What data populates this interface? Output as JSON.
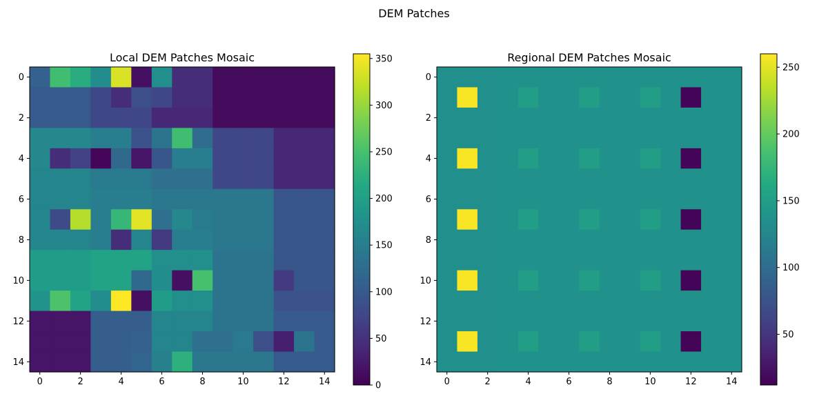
{
  "figure_title": "DEM Patches",
  "chart_data": [
    {
      "type": "heatmap",
      "title": "Local DEM Patches Mosaic",
      "colormap": "viridis",
      "vmin": 0,
      "vmax": 355,
      "xticks": [
        0,
        2,
        4,
        6,
        8,
        10,
        12,
        14
      ],
      "yticks": [
        0,
        2,
        4,
        6,
        8,
        10,
        12,
        14
      ],
      "colorbar_ticks": [
        0,
        50,
        100,
        150,
        200,
        250,
        300,
        350
      ],
      "grid": false,
      "values": [
        [
          110,
          245,
          220,
          170,
          335,
          15,
          175,
          45,
          45,
          10,
          10,
          10,
          10,
          10,
          10
        ],
        [
          100,
          100,
          100,
          75,
          45,
          85,
          75,
          45,
          45,
          10,
          10,
          10,
          10,
          10,
          10
        ],
        [
          100,
          100,
          100,
          75,
          75,
          75,
          40,
          40,
          40,
          10,
          10,
          10,
          10,
          10,
          10
        ],
        [
          165,
          165,
          165,
          150,
          150,
          90,
          135,
          245,
          125,
          75,
          75,
          75,
          40,
          40,
          40
        ],
        [
          165,
          45,
          70,
          5,
          120,
          20,
          95,
          150,
          150,
          75,
          75,
          75,
          40,
          40,
          40
        ],
        [
          160,
          160,
          160,
          145,
          145,
          145,
          130,
          130,
          130,
          75,
          75,
          75,
          40,
          40,
          40
        ],
        [
          160,
          160,
          160,
          150,
          150,
          150,
          140,
          140,
          140,
          140,
          140,
          140,
          95,
          95,
          95
        ],
        [
          160,
          80,
          315,
          150,
          235,
          340,
          130,
          165,
          145,
          140,
          140,
          140,
          95,
          95,
          95
        ],
        [
          160,
          160,
          160,
          150,
          45,
          160,
          60,
          150,
          150,
          140,
          140,
          140,
          95,
          95,
          95
        ],
        [
          195,
          195,
          195,
          205,
          205,
          205,
          175,
          175,
          175,
          135,
          135,
          135,
          95,
          95,
          95
        ],
        [
          195,
          195,
          195,
          205,
          205,
          120,
          170,
          15,
          250,
          135,
          135,
          135,
          60,
          95,
          95
        ],
        [
          180,
          255,
          205,
          170,
          355,
          15,
          195,
          175,
          175,
          135,
          135,
          135,
          90,
          90,
          90
        ],
        [
          20,
          20,
          20,
          105,
          105,
          105,
          160,
          160,
          160,
          135,
          135,
          135,
          100,
          100,
          100
        ],
        [
          20,
          20,
          20,
          105,
          105,
          110,
          160,
          160,
          130,
          130,
          145,
          85,
          30,
          135,
          100
        ],
        [
          20,
          20,
          20,
          105,
          105,
          115,
          155,
          225,
          140,
          140,
          140,
          140,
          100,
          100,
          100
        ]
      ]
    },
    {
      "type": "heatmap",
      "title": "Regional DEM Patches Mosaic",
      "colormap": "viridis",
      "vmin": 12,
      "vmax": 260,
      "xticks": [
        0,
        2,
        4,
        6,
        8,
        10,
        12,
        14
      ],
      "yticks": [
        0,
        2,
        4,
        6,
        8,
        10,
        12,
        14
      ],
      "colorbar_ticks": [
        50,
        100,
        150,
        200,
        250
      ],
      "grid": false,
      "values": [
        [
          135,
          135,
          135,
          136,
          136,
          136,
          136,
          136,
          136,
          136,
          136,
          136,
          136,
          136,
          136
        ],
        [
          135,
          258,
          135,
          136,
          150,
          136,
          136,
          150,
          136,
          136,
          150,
          136,
          14,
          136,
          136
        ],
        [
          135,
          135,
          135,
          136,
          136,
          136,
          136,
          136,
          136,
          136,
          136,
          136,
          136,
          136,
          136
        ],
        [
          135,
          135,
          135,
          136,
          136,
          136,
          136,
          136,
          136,
          136,
          136,
          136,
          136,
          136,
          136
        ],
        [
          135,
          258,
          135,
          136,
          150,
          136,
          136,
          150,
          136,
          136,
          150,
          136,
          14,
          136,
          136
        ],
        [
          135,
          135,
          135,
          136,
          136,
          136,
          136,
          136,
          136,
          136,
          136,
          136,
          136,
          136,
          136
        ],
        [
          135,
          135,
          135,
          136,
          136,
          136,
          136,
          136,
          136,
          136,
          136,
          136,
          136,
          136,
          136
        ],
        [
          135,
          258,
          135,
          136,
          150,
          136,
          136,
          150,
          136,
          136,
          150,
          136,
          14,
          136,
          136
        ],
        [
          135,
          135,
          135,
          136,
          136,
          136,
          136,
          136,
          136,
          136,
          136,
          136,
          136,
          136,
          136
        ],
        [
          135,
          135,
          135,
          136,
          136,
          136,
          136,
          136,
          136,
          136,
          136,
          136,
          136,
          136,
          136
        ],
        [
          135,
          258,
          135,
          136,
          150,
          136,
          136,
          150,
          136,
          136,
          150,
          136,
          14,
          136,
          136
        ],
        [
          135,
          135,
          135,
          136,
          136,
          136,
          136,
          136,
          136,
          136,
          136,
          136,
          136,
          136,
          136
        ],
        [
          135,
          135,
          135,
          136,
          136,
          136,
          136,
          136,
          136,
          136,
          136,
          136,
          136,
          136,
          136
        ],
        [
          135,
          258,
          135,
          136,
          150,
          136,
          136,
          150,
          136,
          136,
          150,
          136,
          14,
          136,
          136
        ],
        [
          135,
          135,
          135,
          136,
          136,
          136,
          136,
          136,
          136,
          136,
          136,
          136,
          136,
          136,
          136
        ]
      ]
    }
  ]
}
